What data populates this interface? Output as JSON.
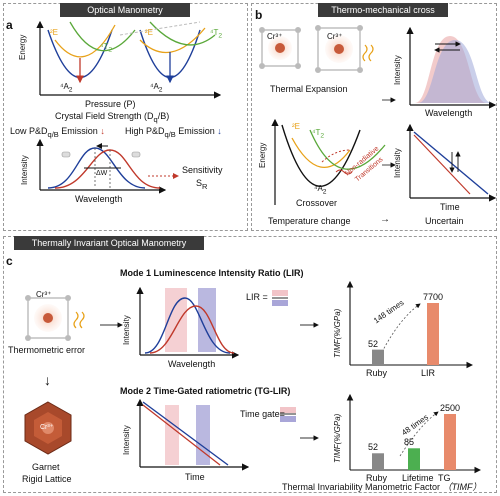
{
  "panel_a": {
    "label": "a",
    "banner": "Optical Manometry",
    "y_axis": "Energy",
    "x_axis": "Pressure (P)",
    "state_2E_left": "²E",
    "state_4T2_left": "⁴T",
    "state_4T2_left_sub": "2",
    "state_2E_right": "²E",
    "state_4T2_right": "⁴T",
    "state_4T2_right_sub": "2",
    "ground_left": "⁴A",
    "ground_left_sub": "2",
    "ground_right": "⁴A",
    "ground_right_sub": "2",
    "cfs": "Crystal Field Strength (D",
    "cfs_sub": "q",
    "cfs_end": "/B)",
    "low": "Low P&D",
    "low_sub": "q/B",
    "low_end": " Emission",
    "high": "High P&D",
    "high_sub": "q/B",
    "high_end": " Emission",
    "intensity": "Intensity",
    "wavelength": "Wavelength",
    "delta_w": "ΔW",
    "sensitivity": "Sensitivity",
    "sr": "S",
    "sr_sub": "R"
  },
  "panel_b": {
    "label": "b",
    "banner": "Thermo-mechanical cross",
    "cr_left": "Cr³⁺",
    "cr_right": "Cr³⁺",
    "thermal_expansion": "Thermal Expansion",
    "intensity_top": "Intensity",
    "wavelength_top": "Wavelength",
    "energy": "Energy",
    "state_2E": "²E",
    "state_4T2": "⁴T",
    "state_4T2_sub": "2",
    "ground": "⁴A",
    "ground_sub": "2",
    "nonrad_1": "Non-radiative",
    "nonrad_2": "Transitions",
    "crossover": "Crossover",
    "intensity_bottom": "Intensity",
    "time": "Time",
    "temp_change": "Temperature change",
    "arrow": "→",
    "uncertain": "Uncertain"
  },
  "panel_c": {
    "label": "c",
    "banner": "Thermally Invariant Optical Manometry",
    "cr_top": "Cr³⁺",
    "thermometric_error": "Thermometric error",
    "cr_garnet": "Cr³⁺",
    "garnet": "Garnet",
    "rigid": "Rigid Lattice",
    "mode1": "Mode 1 Luminescence Intensity Ratio (LIR)",
    "mode1_intensity": "Intensity",
    "mode1_wavelength": "Wavelength",
    "lir_eq": "LIR =",
    "mode2": "Mode 2 Time-Gated ratiometric (TG-LIR)",
    "mode2_intensity": "Intensity",
    "mode2_time": "Time",
    "time_gate": "Time gate=",
    "timf_axis": "TIMF(%/GPa)",
    "times_148": "148 times",
    "times_48": "48 times",
    "footer": "Thermal Invariability Manometric Factor",
    "footer_abbr": "（TIMF）",
    "arrow1": "→",
    "arrow2": "→",
    "down_arrow": "↓"
  },
  "chart_top": {
    "type": "bar",
    "categories": [
      "Ruby",
      "LIR"
    ],
    "values": [
      52,
      7700
    ],
    "value_labels": [
      "52",
      "7700"
    ],
    "colors": [
      "#888888",
      "#e88a6b"
    ],
    "ylabel": "TIMF(%/GPa)"
  },
  "chart_bottom": {
    "type": "bar",
    "categories": [
      "Ruby",
      "Lifetime",
      "TG"
    ],
    "values": [
      52,
      85,
      2500
    ],
    "value_labels": [
      "52",
      "85",
      "2500"
    ],
    "colors": [
      "#888888",
      "#4caf50",
      "#e88a6b"
    ],
    "ylabel": "TIMF(%/GPa)"
  },
  "colors": {
    "red": "#c0392b",
    "blue": "#1f3f9a",
    "green": "#5aa83a",
    "orange": "#e8a21a",
    "salmon": "#e88a6b",
    "lavender": "#a9a6d8",
    "pink": "#f2c4c8"
  }
}
